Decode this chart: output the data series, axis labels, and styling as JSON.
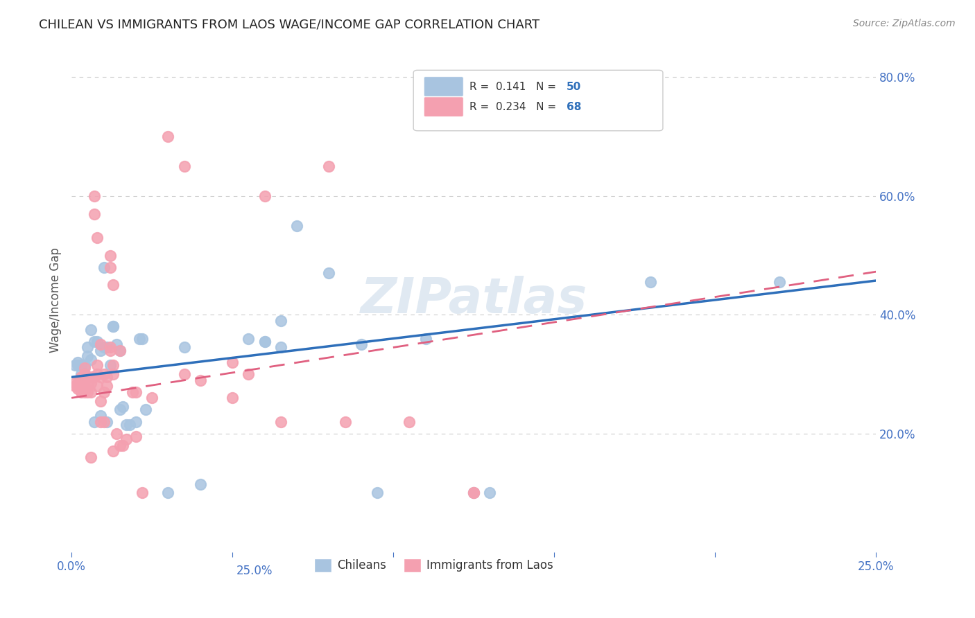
{
  "title": "CHILEAN VS IMMIGRANTS FROM LAOS WAGE/INCOME GAP CORRELATION CHART",
  "source": "Source: ZipAtlas.com",
  "ylabel": "Wage/Income Gap",
  "xlabel_bottom": "",
  "xlim": [
    0.0,
    0.25
  ],
  "ylim": [
    0.0,
    0.85
  ],
  "yticks": [
    0.2,
    0.4,
    0.6,
    0.8
  ],
  "ytick_labels": [
    "20.0%",
    "40.0%",
    "60.0%",
    "80.0%"
  ],
  "xticks": [
    0.0,
    0.05,
    0.1,
    0.15,
    0.2,
    0.25
  ],
  "xtick_labels": [
    "0.0%",
    "",
    "",
    "",
    "",
    "25.0%"
  ],
  "legend_entries": [
    {
      "label": "R =  0.141   N = 50",
      "color": "#a8c4e0"
    },
    {
      "label": "R =  0.234   N = 68",
      "color": "#f4a0b0"
    }
  ],
  "bottom_legend": [
    {
      "label": "Chileans",
      "color": "#a8c4e0"
    },
    {
      "label": "Immigrants from Laos",
      "color": "#f4a0b0"
    }
  ],
  "blue_color": "#5b9bd5",
  "pink_color": "#f4a0b0",
  "blue_scatter_color": "#a8c4e0",
  "pink_scatter_color": "#f4a0b0",
  "blue_line_color": "#2e6fba",
  "pink_line_color": "#e06080",
  "R_blue": 0.141,
  "N_blue": 50,
  "R_pink": 0.234,
  "N_pink": 68,
  "blue_intercept": 0.295,
  "blue_slope": 0.65,
  "pink_intercept": 0.26,
  "pink_slope": 0.85,
  "watermark": "ZIPatlas",
  "background_color": "#ffffff",
  "grid_color": "#cccccc",
  "axis_label_color": "#4472c4",
  "tick_color": "#4472c4",
  "blue_points": [
    [
      0.001,
      0.315
    ],
    [
      0.002,
      0.315
    ],
    [
      0.002,
      0.32
    ],
    [
      0.003,
      0.3
    ],
    [
      0.003,
      0.315
    ],
    [
      0.004,
      0.315
    ],
    [
      0.004,
      0.3
    ],
    [
      0.005,
      0.345
    ],
    [
      0.005,
      0.33
    ],
    [
      0.006,
      0.375
    ],
    [
      0.006,
      0.325
    ],
    [
      0.007,
      0.355
    ],
    [
      0.007,
      0.22
    ],
    [
      0.008,
      0.355
    ],
    [
      0.009,
      0.34
    ],
    [
      0.009,
      0.23
    ],
    [
      0.01,
      0.345
    ],
    [
      0.01,
      0.48
    ],
    [
      0.011,
      0.345
    ],
    [
      0.011,
      0.22
    ],
    [
      0.012,
      0.315
    ],
    [
      0.013,
      0.38
    ],
    [
      0.013,
      0.38
    ],
    [
      0.014,
      0.35
    ],
    [
      0.015,
      0.34
    ],
    [
      0.015,
      0.24
    ],
    [
      0.016,
      0.245
    ],
    [
      0.017,
      0.215
    ],
    [
      0.018,
      0.215
    ],
    [
      0.02,
      0.22
    ],
    [
      0.021,
      0.36
    ],
    [
      0.022,
      0.36
    ],
    [
      0.023,
      0.24
    ],
    [
      0.03,
      0.1
    ],
    [
      0.035,
      0.345
    ],
    [
      0.04,
      0.115
    ],
    [
      0.055,
      0.36
    ],
    [
      0.06,
      0.355
    ],
    [
      0.06,
      0.355
    ],
    [
      0.065,
      0.39
    ],
    [
      0.065,
      0.345
    ],
    [
      0.07,
      0.55
    ],
    [
      0.08,
      0.47
    ],
    [
      0.09,
      0.35
    ],
    [
      0.095,
      0.1
    ],
    [
      0.11,
      0.36
    ],
    [
      0.125,
      0.1
    ],
    [
      0.13,
      0.1
    ],
    [
      0.18,
      0.455
    ],
    [
      0.22,
      0.455
    ]
  ],
  "pink_points": [
    [
      0.001,
      0.285
    ],
    [
      0.001,
      0.28
    ],
    [
      0.002,
      0.285
    ],
    [
      0.002,
      0.28
    ],
    [
      0.002,
      0.275
    ],
    [
      0.003,
      0.295
    ],
    [
      0.003,
      0.28
    ],
    [
      0.003,
      0.27
    ],
    [
      0.004,
      0.31
    ],
    [
      0.004,
      0.3
    ],
    [
      0.004,
      0.28
    ],
    [
      0.004,
      0.27
    ],
    [
      0.005,
      0.295
    ],
    [
      0.005,
      0.295
    ],
    [
      0.005,
      0.28
    ],
    [
      0.005,
      0.27
    ],
    [
      0.006,
      0.295
    ],
    [
      0.006,
      0.285
    ],
    [
      0.006,
      0.27
    ],
    [
      0.006,
      0.16
    ],
    [
      0.007,
      0.295
    ],
    [
      0.007,
      0.6
    ],
    [
      0.007,
      0.57
    ],
    [
      0.008,
      0.53
    ],
    [
      0.008,
      0.315
    ],
    [
      0.008,
      0.3
    ],
    [
      0.008,
      0.28
    ],
    [
      0.009,
      0.35
    ],
    [
      0.009,
      0.295
    ],
    [
      0.009,
      0.255
    ],
    [
      0.009,
      0.22
    ],
    [
      0.01,
      0.3
    ],
    [
      0.01,
      0.27
    ],
    [
      0.01,
      0.22
    ],
    [
      0.011,
      0.295
    ],
    [
      0.011,
      0.28
    ],
    [
      0.012,
      0.5
    ],
    [
      0.012,
      0.48
    ],
    [
      0.012,
      0.345
    ],
    [
      0.012,
      0.34
    ],
    [
      0.013,
      0.45
    ],
    [
      0.013,
      0.315
    ],
    [
      0.013,
      0.3
    ],
    [
      0.013,
      0.17
    ],
    [
      0.014,
      0.2
    ],
    [
      0.015,
      0.34
    ],
    [
      0.015,
      0.18
    ],
    [
      0.016,
      0.18
    ],
    [
      0.017,
      0.19
    ],
    [
      0.019,
      0.27
    ],
    [
      0.02,
      0.27
    ],
    [
      0.02,
      0.195
    ],
    [
      0.022,
      0.1
    ],
    [
      0.025,
      0.26
    ],
    [
      0.03,
      0.7
    ],
    [
      0.035,
      0.65
    ],
    [
      0.035,
      0.3
    ],
    [
      0.04,
      0.29
    ],
    [
      0.05,
      0.32
    ],
    [
      0.05,
      0.26
    ],
    [
      0.055,
      0.3
    ],
    [
      0.06,
      0.6
    ],
    [
      0.065,
      0.22
    ],
    [
      0.08,
      0.65
    ],
    [
      0.085,
      0.22
    ],
    [
      0.105,
      0.22
    ],
    [
      0.125,
      0.1
    ],
    [
      0.125,
      0.1
    ]
  ]
}
